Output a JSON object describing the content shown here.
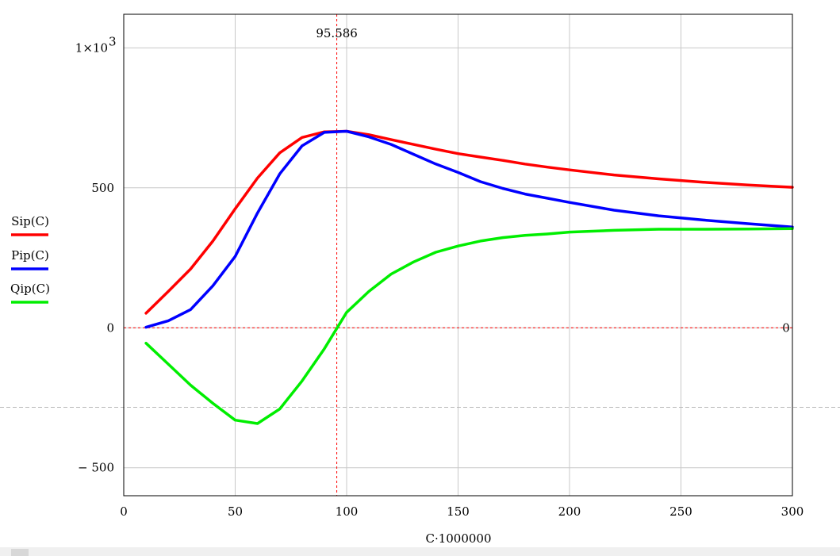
{
  "chart_data": {
    "type": "line",
    "xlabel": "C·1000000",
    "x_range": [
      0,
      300
    ],
    "y_range": [
      -600,
      1120
    ],
    "x_ticks": [
      {
        "value": 0,
        "label": "0"
      },
      {
        "value": 50,
        "label": "50"
      },
      {
        "value": 100,
        "label": "100"
      },
      {
        "value": 150,
        "label": "150"
      },
      {
        "value": 200,
        "label": "200"
      },
      {
        "value": 250,
        "label": "250"
      },
      {
        "value": 300,
        "label": "300"
      }
    ],
    "y_ticks": [
      {
        "value": -500,
        "label": "− 500"
      },
      {
        "value": 0,
        "label": "0"
      },
      {
        "value": 500,
        "label": "500"
      },
      {
        "value": 1000,
        "label": "1×10",
        "superscript": "3"
      }
    ],
    "grid": true,
    "markers": {
      "vertical": {
        "x": 95.586,
        "label": "95.586",
        "color": "#ff0000"
      },
      "horizontal": {
        "y": 0,
        "label": "0",
        "color": "#ff0000"
      }
    },
    "legend_position": "left",
    "series": [
      {
        "name": "Sip(C)",
        "color": "#ff0000",
        "x": [
          10,
          20,
          30,
          40,
          50,
          60,
          70,
          80,
          90,
          100,
          110,
          120,
          130,
          140,
          150,
          160,
          170,
          180,
          190,
          200,
          220,
          240,
          260,
          280,
          300
        ],
        "y": [
          52,
          130,
          210,
          310,
          425,
          535,
          625,
          680,
          700,
          702,
          690,
          672,
          655,
          638,
          622,
          610,
          598,
          585,
          574,
          564,
          546,
          532,
          520,
          510,
          502
        ]
      },
      {
        "name": "Pip(C)",
        "color": "#0000ff",
        "x": [
          10,
          20,
          30,
          40,
          50,
          60,
          70,
          80,
          90,
          100,
          110,
          120,
          130,
          140,
          150,
          160,
          170,
          180,
          190,
          200,
          220,
          240,
          260,
          280,
          300
        ],
        "y": [
          2,
          25,
          65,
          150,
          255,
          410,
          550,
          650,
          698,
          702,
          682,
          655,
          620,
          585,
          555,
          522,
          498,
          478,
          463,
          448,
          420,
          400,
          385,
          372,
          360
        ]
      },
      {
        "name": "Qip(C)",
        "color": "#00ee00",
        "x": [
          10,
          20,
          30,
          40,
          50,
          60,
          70,
          80,
          90,
          100,
          110,
          120,
          130,
          140,
          150,
          160,
          170,
          180,
          190,
          200,
          220,
          240,
          260,
          280,
          300
        ],
        "y": [
          -55,
          -130,
          -205,
          -270,
          -330,
          -342,
          -290,
          -190,
          -75,
          55,
          130,
          192,
          235,
          270,
          292,
          310,
          322,
          330,
          335,
          342,
          348,
          352,
          352,
          353,
          354
        ]
      }
    ]
  }
}
